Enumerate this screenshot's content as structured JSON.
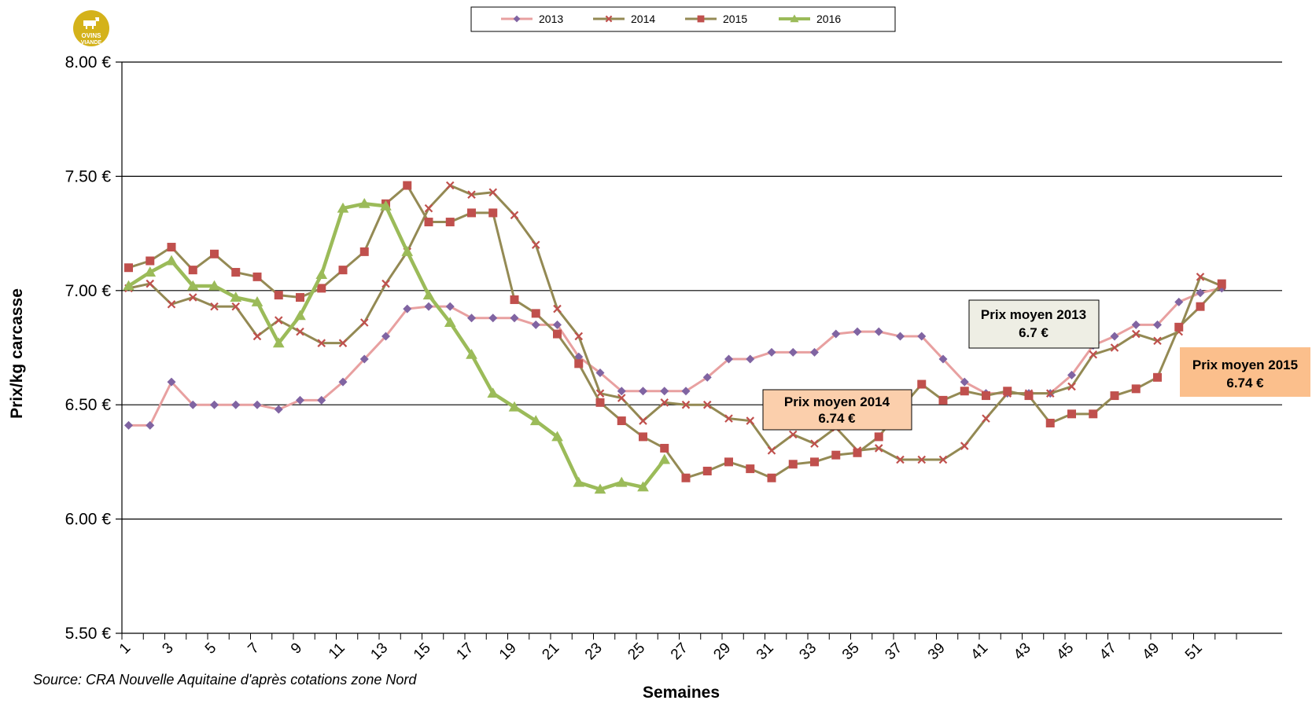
{
  "logo": {
    "line1": "OVINS",
    "line2": "VIANDE",
    "icon": "sheep-icon"
  },
  "source_note": "Source: CRA Nouvelle Aquitaine d'après cotations  zone Nord",
  "annotations": [
    {
      "title": "Prix moyen 2013",
      "value": "6.7 €",
      "bg": "#eeeee4"
    },
    {
      "title": "Prix moyen 2014",
      "value": "6.74 €",
      "bg": "#fbcfac"
    },
    {
      "title": "Prix moyen 2015",
      "value": "6.74 €",
      "bg": "#fbbf8c"
    }
  ],
  "chart_data": {
    "type": "line",
    "xlabel": "Semaines",
    "ylabel": "Prix/kg carcasse",
    "ylim": [
      5.5,
      8.0
    ],
    "xlim": [
      1,
      52
    ],
    "y_ticks": [
      "8.00 €",
      "7.50 €",
      "7.00 €",
      "6.50 €",
      "6.00 €",
      "5.50 €"
    ],
    "x_tick_labels": [
      "1",
      "3",
      "5",
      "7",
      "9",
      "11",
      "13",
      "15",
      "17",
      "19",
      "21",
      "23",
      "25",
      "27",
      "29",
      "31",
      "33",
      "35",
      "37",
      "39",
      "41",
      "43",
      "45",
      "47",
      "49",
      "51"
    ],
    "grid": "horizontal",
    "legend_position": "top-center",
    "series": [
      {
        "name": "2013",
        "color": "#e8a0a0",
        "marker": "diamond",
        "marker_color": "#8064a2",
        "values": [
          6.41,
          6.41,
          6.6,
          6.5,
          6.5,
          6.5,
          6.5,
          6.48,
          6.52,
          6.52,
          6.6,
          6.7,
          6.8,
          6.92,
          6.93,
          6.93,
          6.88,
          6.88,
          6.88,
          6.85,
          6.85,
          6.71,
          6.64,
          6.56,
          6.56,
          6.56,
          6.56,
          6.62,
          6.7,
          6.7,
          6.73,
          6.73,
          6.73,
          6.81,
          6.82,
          6.82,
          6.8,
          6.8,
          6.7,
          6.6,
          6.55,
          6.55,
          6.55,
          6.55,
          6.63,
          6.76,
          6.8,
          6.85,
          6.85,
          6.95,
          6.99,
          7.01
        ]
      },
      {
        "name": "2014",
        "color": "#938953",
        "marker": "x",
        "marker_color": "#c0504d",
        "values": [
          7.01,
          7.03,
          6.94,
          6.97,
          6.93,
          6.93,
          6.8,
          6.87,
          6.82,
          6.77,
          6.77,
          6.86,
          7.03,
          7.17,
          7.36,
          7.46,
          7.42,
          7.43,
          7.33,
          7.2,
          6.92,
          6.8,
          6.55,
          6.53,
          6.43,
          6.51,
          6.5,
          6.5,
          6.44,
          6.43,
          6.3,
          6.37,
          6.33,
          6.4,
          6.3,
          6.31,
          6.26,
          6.26,
          6.26,
          6.32,
          6.44,
          6.55,
          6.55,
          6.55,
          6.58,
          6.72,
          6.75,
          6.81,
          6.78,
          6.82,
          7.06,
          7.02
        ]
      },
      {
        "name": "2015",
        "color": "#948a54",
        "marker": "square",
        "marker_color": "#c0504d",
        "values": [
          7.1,
          7.13,
          7.19,
          7.09,
          7.16,
          7.08,
          7.06,
          6.98,
          6.97,
          7.01,
          7.09,
          7.17,
          7.38,
          7.46,
          7.3,
          7.3,
          7.34,
          7.34,
          6.96,
          6.9,
          6.81,
          6.68,
          6.51,
          6.43,
          6.36,
          6.31,
          6.18,
          6.21,
          6.25,
          6.22,
          6.18,
          6.24,
          6.25,
          6.28,
          6.29,
          6.36,
          6.48,
          6.59,
          6.52,
          6.56,
          6.54,
          6.56,
          6.54,
          6.42,
          6.46,
          6.46,
          6.54,
          6.57,
          6.62,
          6.84,
          6.93,
          7.03
        ]
      },
      {
        "name": "2016",
        "color": "#9bbb59",
        "marker": "triangle",
        "marker_color": "#9bbb59",
        "values": [
          7.02,
          7.08,
          7.13,
          7.02,
          7.02,
          6.97,
          6.95,
          6.77,
          6.89,
          7.07,
          7.36,
          7.38,
          7.37,
          7.17,
          6.98,
          6.86,
          6.72,
          6.55,
          6.49,
          6.43,
          6.36,
          6.16,
          6.13,
          6.16,
          6.14,
          6.26
        ]
      }
    ]
  }
}
